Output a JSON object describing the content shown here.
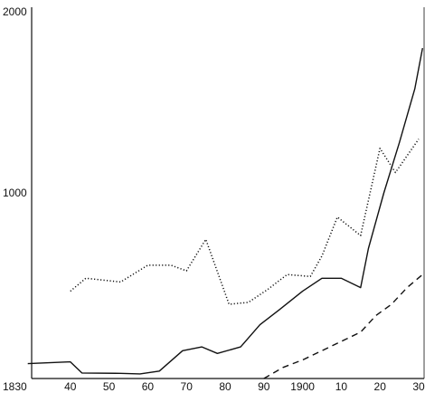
{
  "chart_data": {
    "type": "line",
    "title": "",
    "xlabel": "",
    "ylabel": "",
    "xlim": [
      1830,
      1932
    ],
    "ylim": [
      0,
      2000
    ],
    "grid": false,
    "legend": "none",
    "x_ticks": [
      {
        "value": 1830,
        "label": "1830"
      },
      {
        "value": 1840,
        "label": "40"
      },
      {
        "value": 1850,
        "label": "50"
      },
      {
        "value": 1860,
        "label": "60"
      },
      {
        "value": 1870,
        "label": "70"
      },
      {
        "value": 1880,
        "label": "80"
      },
      {
        "value": 1890,
        "label": "90"
      },
      {
        "value": 1900,
        "label": "1900"
      },
      {
        "value": 1910,
        "label": "10"
      },
      {
        "value": 1920,
        "label": "20"
      },
      {
        "value": 1930,
        "label": "30"
      }
    ],
    "y_ticks": [
      {
        "value": 1000,
        "label": "1000"
      },
      {
        "value": 2000,
        "label": "2000"
      }
    ],
    "series": [
      {
        "style": "solid",
        "color": "#111111",
        "x": [
          1829,
          1840,
          1843,
          1853,
          1858,
          1863,
          1869,
          1874,
          1878,
          1884,
          1889,
          1894,
          1900,
          1905,
          1910,
          1915,
          1917,
          1921,
          1925,
          1929,
          1931
        ],
        "y": [
          80,
          90,
          30,
          28,
          25,
          40,
          150,
          170,
          135,
          170,
          290,
          370,
          470,
          540,
          540,
          490,
          700,
          1000,
          1270,
          1560,
          1780
        ]
      },
      {
        "style": "dotted",
        "color": "#111111",
        "x": [
          1840,
          1844,
          1853,
          1860,
          1866,
          1870,
          1875,
          1881,
          1886,
          1891,
          1896,
          1902,
          1905,
          1909,
          1915,
          1920,
          1924,
          1930
        ],
        "y": [
          470,
          540,
          520,
          610,
          610,
          580,
          750,
          400,
          410,
          480,
          560,
          550,
          660,
          870,
          770,
          1240,
          1110,
          1290
        ]
      },
      {
        "style": "dashed",
        "color": "#111111",
        "x": [
          1890,
          1895,
          1900,
          1905,
          1910,
          1915,
          1919,
          1923,
          1927,
          1931
        ],
        "y": [
          0,
          60,
          100,
          150,
          200,
          250,
          340,
          400,
          490,
          560
        ]
      }
    ]
  }
}
